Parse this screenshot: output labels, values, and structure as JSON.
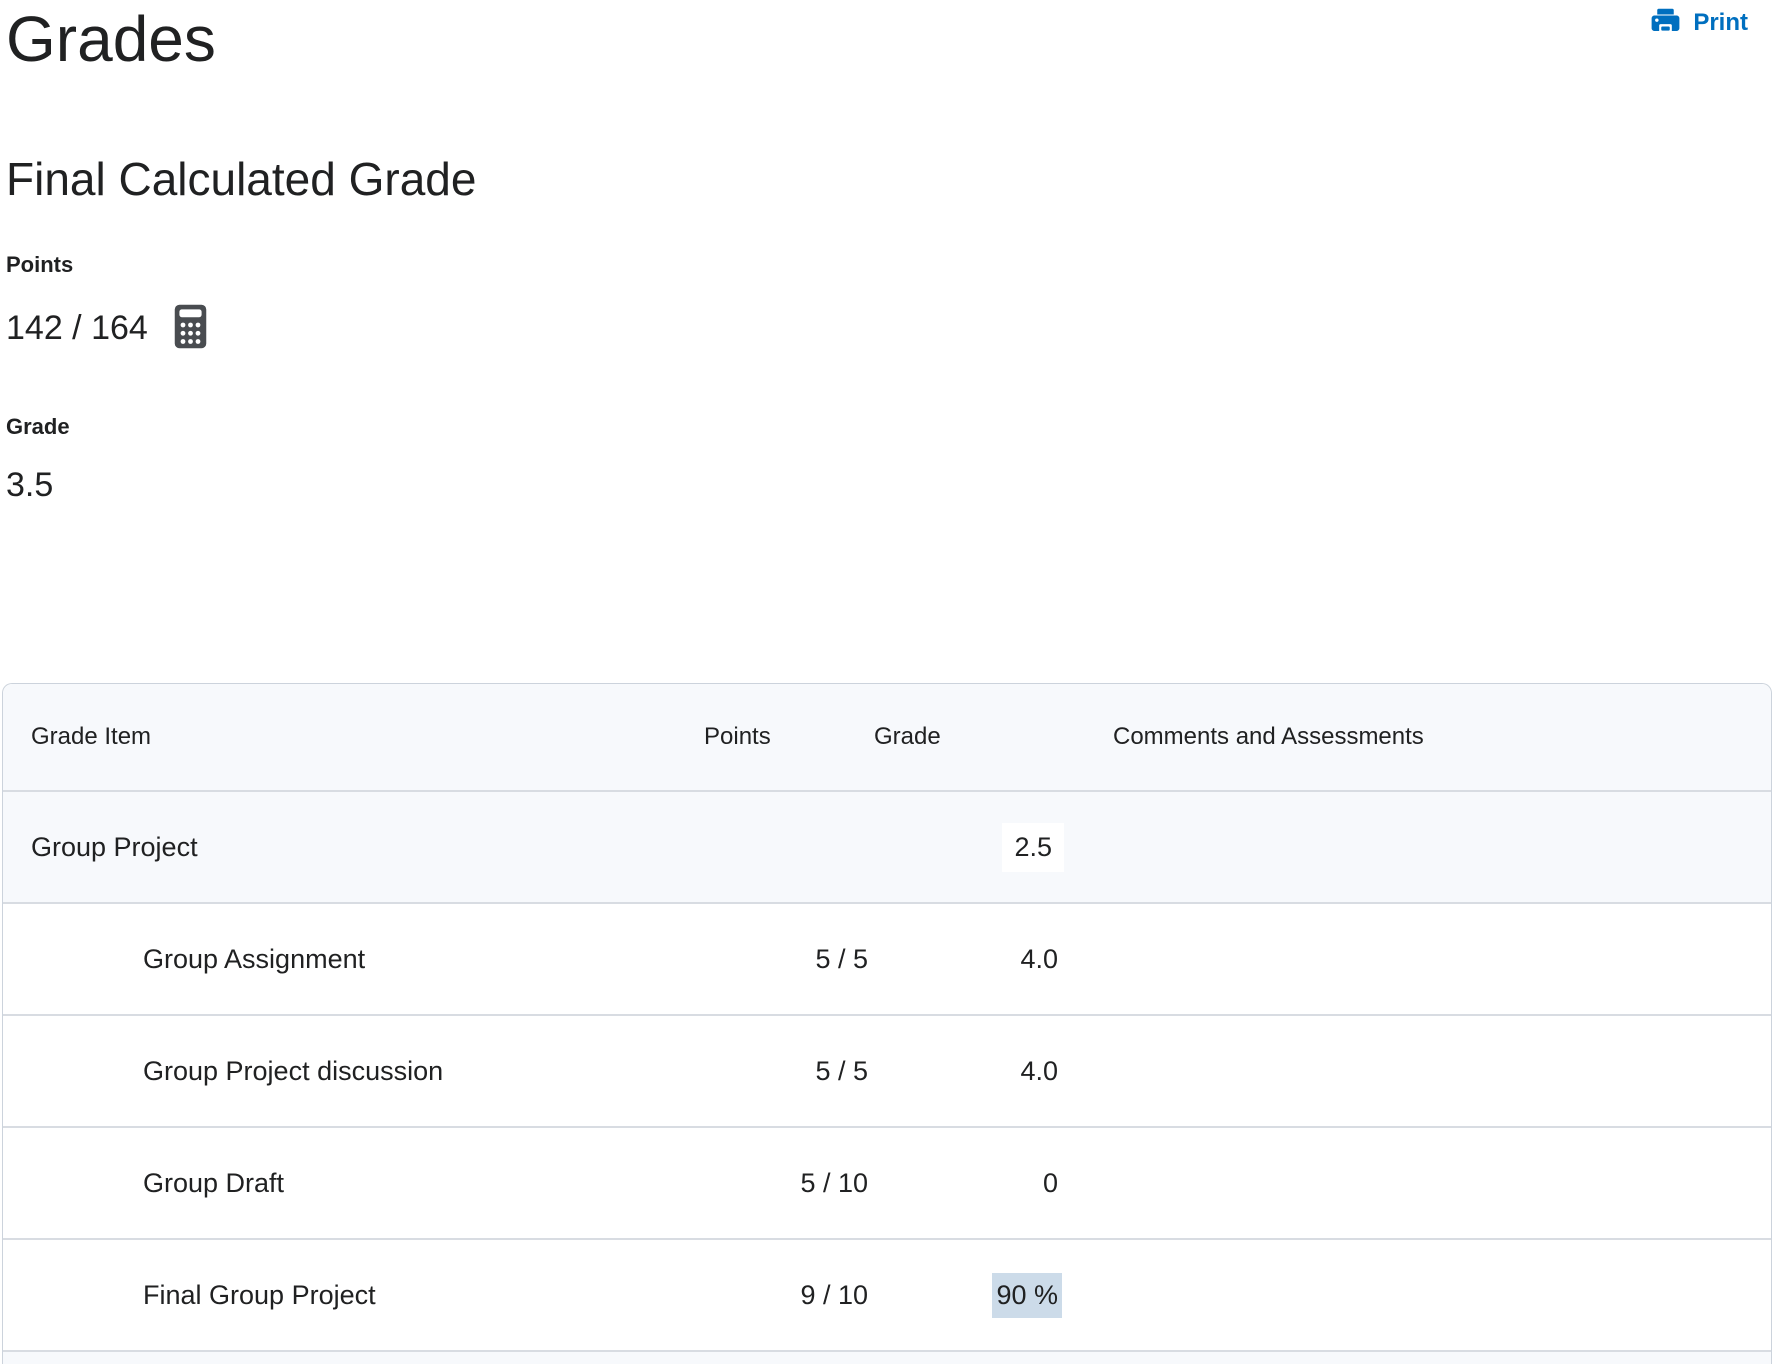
{
  "page": {
    "title": "Grades"
  },
  "toolbar": {
    "print_label": "Print"
  },
  "summary": {
    "heading": "Final Calculated Grade",
    "points_label": "Points",
    "points_value": "142 / 164",
    "grade_label": "Grade",
    "grade_value": "3.5"
  },
  "table": {
    "columns": [
      "Grade Item",
      "Points",
      "Grade",
      "Comments and Assessments"
    ],
    "rows": [
      {
        "name": "Group Project",
        "points": "",
        "grade": "2.5",
        "comments": "",
        "category": true
      },
      {
        "name": "Group Assignment",
        "points": "5 / 5",
        "grade": "4.0",
        "comments": ""
      },
      {
        "name": "Group Project discussion",
        "points": "5 / 5",
        "grade": "4.0",
        "comments": ""
      },
      {
        "name": "Group Draft",
        "points": "5 / 10",
        "grade": "0",
        "comments": ""
      },
      {
        "name": "Final Group Project",
        "points": "9 / 10",
        "grade": "90 %",
        "comments": "",
        "grade_highlighted": true
      }
    ]
  },
  "icons": {
    "print": "printer-icon",
    "points_calc": "calculator-icon"
  },
  "colors": {
    "link_blue": "#006fbf",
    "calculator_icon_gray": "#494c50",
    "grade_highlight": "#ccdbe9",
    "table_tint": "#f7f9fc",
    "text": "#202122"
  }
}
